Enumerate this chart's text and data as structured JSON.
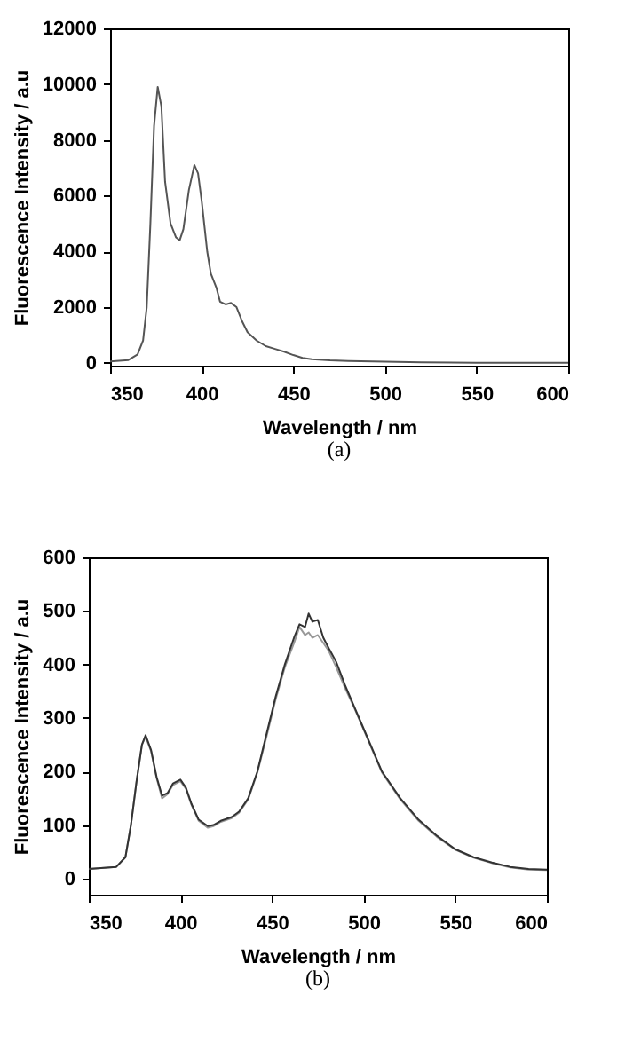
{
  "chart_data": [
    {
      "type": "line",
      "xlabel": "Wavelength / nm",
      "ylabel": "Fluorescence Intensity / a.u",
      "annotations": [
        "(a)"
      ],
      "x": [
        350,
        360,
        365,
        368,
        370,
        372,
        374,
        376,
        378,
        380,
        383,
        386,
        388,
        390,
        393,
        396,
        398,
        400,
        403,
        405,
        408,
        410,
        413,
        416,
        419,
        422,
        425,
        430,
        435,
        440,
        445,
        450,
        455,
        460,
        470,
        480,
        500,
        520,
        550,
        600
      ],
      "series": [
        {
          "color": "#555555",
          "values": [
            50,
            100,
            300,
            800,
            2000,
            5000,
            8500,
            9900,
            9200,
            6500,
            5000,
            4500,
            4400,
            4800,
            6200,
            7100,
            6800,
            5800,
            4000,
            3200,
            2700,
            2200,
            2100,
            2150,
            2000,
            1500,
            1100,
            800,
            600,
            500,
            400,
            280,
            180,
            130,
            90,
            70,
            40,
            20,
            0,
            0
          ]
        }
      ],
      "xlim": [
        350,
        600
      ],
      "ylim": [
        -100,
        12000
      ],
      "xticks": [
        350,
        400,
        450,
        500,
        550,
        600
      ],
      "yticks": [
        0,
        2000,
        4000,
        6000,
        8000,
        10000,
        12000
      ]
    },
    {
      "type": "line",
      "xlabel": "Wavelength / nm",
      "ylabel": "Fluorescence Intensity / a.u",
      "annotations": [
        "(b)"
      ],
      "x": [
        350,
        365,
        370,
        373,
        376,
        379,
        381,
        384,
        387,
        390,
        393,
        396,
        400,
        403,
        406,
        410,
        415,
        418,
        422,
        428,
        432,
        437,
        442,
        447,
        452,
        457,
        462,
        465,
        468,
        470,
        472,
        475,
        478,
        481,
        485,
        490,
        495,
        500,
        505,
        510,
        520,
        530,
        540,
        550,
        560,
        570,
        580,
        590,
        600
      ],
      "series": [
        {
          "color": "#999999",
          "values": [
            18,
            22,
            40,
            100,
            180,
            250,
            265,
            238,
            188,
            150,
            158,
            175,
            182,
            168,
            138,
            108,
            95,
            98,
            106,
            113,
            123,
            148,
            198,
            265,
            335,
            395,
            440,
            470,
            455,
            460,
            450,
            455,
            440,
            425,
            395,
            355,
            318,
            278,
            238,
            198,
            148,
            108,
            78,
            54,
            39,
            29,
            21,
            17,
            16
          ]
        },
        {
          "color": "#333333",
          "values": [
            18,
            22,
            40,
            100,
            180,
            250,
            268,
            240,
            190,
            155,
            160,
            178,
            185,
            170,
            140,
            110,
            98,
            100,
            108,
            115,
            125,
            150,
            200,
            270,
            340,
            400,
            450,
            475,
            470,
            495,
            480,
            483,
            450,
            430,
            405,
            360,
            320,
            280,
            240,
            200,
            150,
            110,
            80,
            55,
            40,
            30,
            22,
            18,
            17
          ]
        }
      ],
      "xlim": [
        350,
        600
      ],
      "ylim": [
        -30,
        600
      ],
      "xticks": [
        350,
        400,
        450,
        500,
        550,
        600
      ],
      "yticks": [
        0,
        100,
        200,
        300,
        400,
        500,
        600
      ]
    }
  ]
}
